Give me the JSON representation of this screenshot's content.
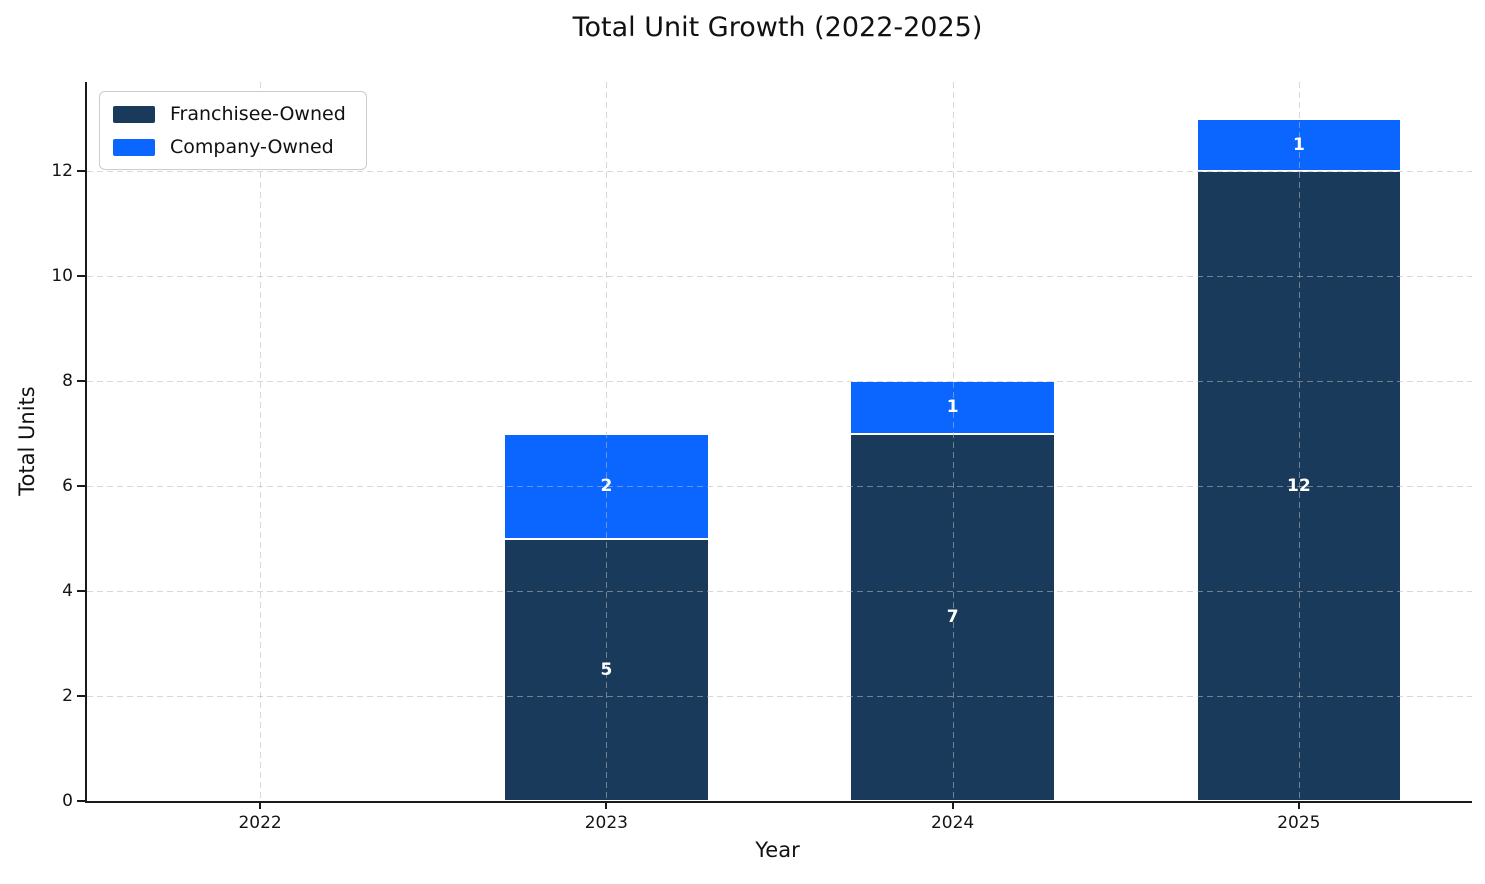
{
  "chart_data": {
    "type": "bar",
    "stacked": true,
    "title": "Total Unit Growth (2022-2025)",
    "xlabel": "Year",
    "ylabel": "Total Units",
    "categories": [
      "2022",
      "2023",
      "2024",
      "2025"
    ],
    "series": [
      {
        "name": "Franchisee-Owned",
        "color": "#1a3a5c",
        "values": [
          0,
          5,
          7,
          12
        ]
      },
      {
        "name": "Company-Owned",
        "color": "#0a66ff",
        "values": [
          0,
          2,
          1,
          1
        ]
      }
    ],
    "totals": [
      0,
      7,
      8,
      13
    ],
    "bar_value_labels": [
      {
        "category": "2023",
        "Franchisee-Owned": "5",
        "Company-Owned": "2"
      },
      {
        "category": "2024",
        "Franchisee-Owned": "7",
        "Company-Owned": "1"
      },
      {
        "category": "2025",
        "Franchisee-Owned": "12",
        "Company-Owned": "1"
      }
    ],
    "ylim": [
      0,
      13.7
    ],
    "yticks": [
      0,
      2,
      4,
      6,
      8,
      10,
      12
    ],
    "grid": "both-dashed",
    "legend_position": "upper-left",
    "bar_label_color": "#ffffff",
    "axis_color": "#1a1a1a"
  }
}
